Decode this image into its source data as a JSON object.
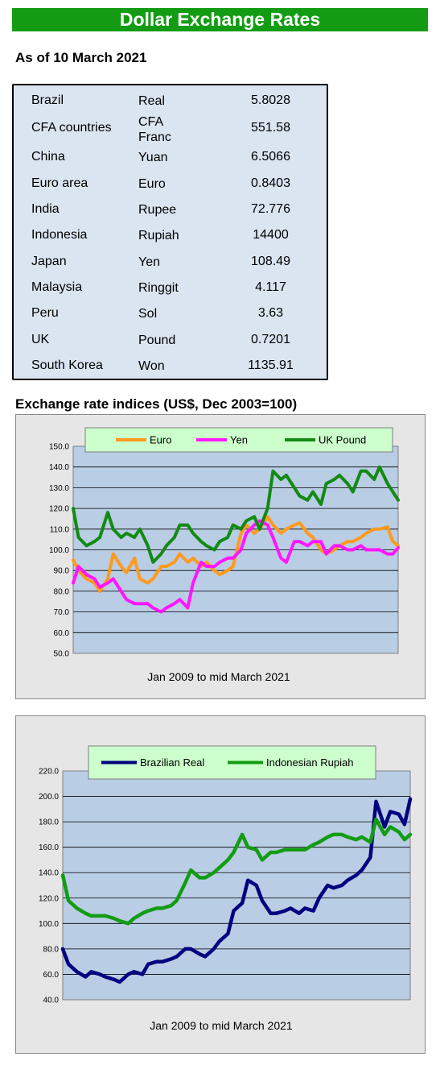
{
  "page": {
    "title": "Dollar Exchange Rates",
    "as_of": "As of 10 March 2021",
    "indices_heading": "Exchange rate indices (US$, Dec 2003=100)"
  },
  "rates": [
    {
      "country": "Brazil",
      "currency": "Real",
      "rate": "5.8028"
    },
    {
      "country": "CFA countries",
      "currency": "CFA Franc",
      "rate": "551.58"
    },
    {
      "country": "China",
      "currency": "Yuan",
      "rate": "6.5066"
    },
    {
      "country": "Euro area",
      "currency": "Euro",
      "rate": "0.8403"
    },
    {
      "country": "India",
      "currency": "Rupee",
      "rate": "72.776"
    },
    {
      "country": "Indonesia",
      "currency": "Rupiah",
      "rate": "14400"
    },
    {
      "country": "Japan",
      "currency": "Yen",
      "rate": "108.49"
    },
    {
      "country": "Malaysia",
      "currency": "Ringgit",
      "rate": "4.117"
    },
    {
      "country": "Peru",
      "currency": "Sol",
      "rate": "3.63"
    },
    {
      "country": "UK",
      "currency": "Pound",
      "rate": "0.7201"
    },
    {
      "country": "South Korea",
      "currency": "Won",
      "rate": "1135.91"
    }
  ],
  "chart_data": [
    {
      "type": "line",
      "xlabel": "Jan 2009  to mid March 2021",
      "ylabel": "",
      "ylim": [
        50,
        150
      ],
      "yticks": [
        "50.0",
        "60.0",
        "70.0",
        "80.0",
        "90.0",
        "100.0",
        "110.0",
        "120.0",
        "130.0",
        "140.0",
        "150.0"
      ],
      "grid": true,
      "legend": "top",
      "x_start_year": 2009,
      "x_end_year": 2021.2,
      "series": [
        {
          "name": "Euro",
          "color": "#ff9a1c",
          "x": [
            2009.0,
            2009.2,
            2009.5,
            2009.8,
            2010.0,
            2010.3,
            2010.5,
            2010.8,
            2011.0,
            2011.3,
            2011.5,
            2011.8,
            2012.0,
            2012.3,
            2012.5,
            2012.8,
            2013.0,
            2013.3,
            2013.5,
            2013.8,
            2014.0,
            2014.3,
            2014.5,
            2014.8,
            2015.0,
            2015.3,
            2015.5,
            2015.8,
            2016.0,
            2016.3,
            2016.5,
            2016.8,
            2017.0,
            2017.3,
            2017.5,
            2017.8,
            2018.0,
            2018.3,
            2018.5,
            2018.8,
            2019.0,
            2019.3,
            2019.5,
            2019.8,
            2020.0,
            2020.3,
            2020.5,
            2020.8,
            2021.0,
            2021.2
          ],
          "y": [
            95,
            90,
            86,
            84,
            80,
            86,
            98,
            92,
            89,
            96,
            86,
            84,
            86,
            92,
            92,
            94,
            98,
            94,
            96,
            92,
            94,
            90,
            88,
            90,
            92,
            108,
            112,
            108,
            110,
            116,
            112,
            108,
            110,
            112,
            113,
            108,
            106,
            100,
            98,
            100,
            102,
            104,
            104,
            106,
            108,
            110,
            110,
            111,
            104,
            102
          ]
        },
        {
          "name": "Yen",
          "color": "#ff17ff",
          "x": [
            2009.0,
            2009.2,
            2009.5,
            2009.8,
            2010.0,
            2010.3,
            2010.5,
            2010.8,
            2011.0,
            2011.3,
            2011.5,
            2011.8,
            2012.0,
            2012.3,
            2012.5,
            2012.8,
            2013.0,
            2013.3,
            2013.5,
            2013.8,
            2014.0,
            2014.3,
            2014.5,
            2014.8,
            2015.0,
            2015.3,
            2015.5,
            2015.8,
            2016.0,
            2016.3,
            2016.5,
            2016.8,
            2017.0,
            2017.3,
            2017.5,
            2017.8,
            2018.0,
            2018.3,
            2018.5,
            2018.8,
            2019.0,
            2019.3,
            2019.5,
            2019.8,
            2020.0,
            2020.3,
            2020.5,
            2020.8,
            2021.0,
            2021.2
          ],
          "y": [
            84,
            92,
            88,
            86,
            82,
            84,
            86,
            80,
            76,
            74,
            74,
            74,
            72,
            70,
            72,
            74,
            76,
            72,
            84,
            94,
            92,
            92,
            94,
            96,
            96,
            100,
            108,
            112,
            114,
            112,
            106,
            96,
            94,
            104,
            104,
            102,
            104,
            104,
            98,
            102,
            102,
            100,
            100,
            102,
            100,
            100,
            100,
            98,
            98,
            101
          ]
        },
        {
          "name": "UK Pound",
          "color": "#138a13",
          "x": [
            2009.0,
            2009.2,
            2009.5,
            2009.8,
            2010.0,
            2010.3,
            2010.5,
            2010.8,
            2011.0,
            2011.3,
            2011.5,
            2011.8,
            2012.0,
            2012.3,
            2012.5,
            2012.8,
            2013.0,
            2013.3,
            2013.5,
            2013.8,
            2014.0,
            2014.3,
            2014.5,
            2014.8,
            2015.0,
            2015.3,
            2015.5,
            2015.8,
            2016.0,
            2016.3,
            2016.5,
            2016.8,
            2017.0,
            2017.3,
            2017.5,
            2017.8,
            2018.0,
            2018.3,
            2018.5,
            2018.8,
            2019.0,
            2019.3,
            2019.5,
            2019.8,
            2020.0,
            2020.3,
            2020.5,
            2020.8,
            2021.0,
            2021.2
          ],
          "y": [
            120,
            106,
            102,
            104,
            106,
            118,
            110,
            106,
            108,
            106,
            110,
            102,
            94,
            98,
            102,
            106,
            112,
            112,
            108,
            104,
            102,
            100,
            104,
            106,
            112,
            110,
            114,
            116,
            110,
            120,
            138,
            134,
            136,
            130,
            126,
            124,
            128,
            122,
            132,
            134,
            136,
            132,
            128,
            138,
            138,
            134,
            140,
            132,
            128,
            124
          ]
        }
      ]
    },
    {
      "type": "line",
      "xlabel": "Jan 2009  to mid March 2021",
      "ylabel": "",
      "ylim": [
        40,
        220
      ],
      "yticks": [
        "40.0",
        "60.0",
        "80.0",
        "100.0",
        "120.0",
        "140.0",
        "160.0",
        "180.0",
        "200.0",
        "220.0"
      ],
      "grid": true,
      "legend": "top",
      "x_start_year": 2009,
      "x_end_year": 2021.2,
      "series": [
        {
          "name": "Brazilian Real",
          "color": "#000080",
          "x": [
            2009.0,
            2009.2,
            2009.5,
            2009.8,
            2010.0,
            2010.3,
            2010.5,
            2010.8,
            2011.0,
            2011.3,
            2011.5,
            2011.8,
            2012.0,
            2012.3,
            2012.5,
            2012.8,
            2013.0,
            2013.3,
            2013.5,
            2013.8,
            2014.0,
            2014.3,
            2014.5,
            2014.8,
            2015.0,
            2015.3,
            2015.5,
            2015.8,
            2016.0,
            2016.3,
            2016.5,
            2016.8,
            2017.0,
            2017.3,
            2017.5,
            2017.8,
            2018.0,
            2018.3,
            2018.5,
            2018.8,
            2019.0,
            2019.3,
            2019.5,
            2019.8,
            2020.0,
            2020.3,
            2020.5,
            2020.8,
            2021.0,
            2021.2
          ],
          "y": [
            80,
            68,
            62,
            58,
            62,
            60,
            58,
            56,
            54,
            60,
            62,
            60,
            68,
            70,
            70,
            72,
            74,
            80,
            80,
            76,
            74,
            80,
            86,
            92,
            110,
            116,
            134,
            130,
            118,
            108,
            108,
            110,
            112,
            108,
            112,
            110,
            120,
            130,
            128,
            130,
            134,
            138,
            142,
            152,
            196,
            176,
            188,
            186,
            178,
            198
          ]
        },
        {
          "name": "Indonesian Rupiah",
          "color": "#139c13",
          "x": [
            2009.0,
            2009.2,
            2009.5,
            2009.8,
            2010.0,
            2010.3,
            2010.5,
            2010.8,
            2011.0,
            2011.3,
            2011.5,
            2011.8,
            2012.0,
            2012.3,
            2012.5,
            2012.8,
            2013.0,
            2013.3,
            2013.5,
            2013.8,
            2014.0,
            2014.3,
            2014.5,
            2014.8,
            2015.0,
            2015.3,
            2015.5,
            2015.8,
            2016.0,
            2016.3,
            2016.5,
            2016.8,
            2017.0,
            2017.3,
            2017.5,
            2017.8,
            2018.0,
            2018.3,
            2018.5,
            2018.8,
            2019.0,
            2019.3,
            2019.5,
            2019.8,
            2020.0,
            2020.3,
            2020.5,
            2020.8,
            2021.0,
            2021.2
          ],
          "y": [
            138,
            118,
            112,
            108,
            106,
            106,
            106,
            104,
            102,
            100,
            104,
            108,
            110,
            112,
            112,
            114,
            118,
            132,
            142,
            136,
            136,
            140,
            144,
            150,
            156,
            170,
            160,
            158,
            150,
            156,
            156,
            158,
            158,
            158,
            158,
            162,
            164,
            168,
            170,
            170,
            168,
            166,
            168,
            164,
            182,
            170,
            176,
            172,
            166,
            170
          ]
        }
      ]
    }
  ]
}
